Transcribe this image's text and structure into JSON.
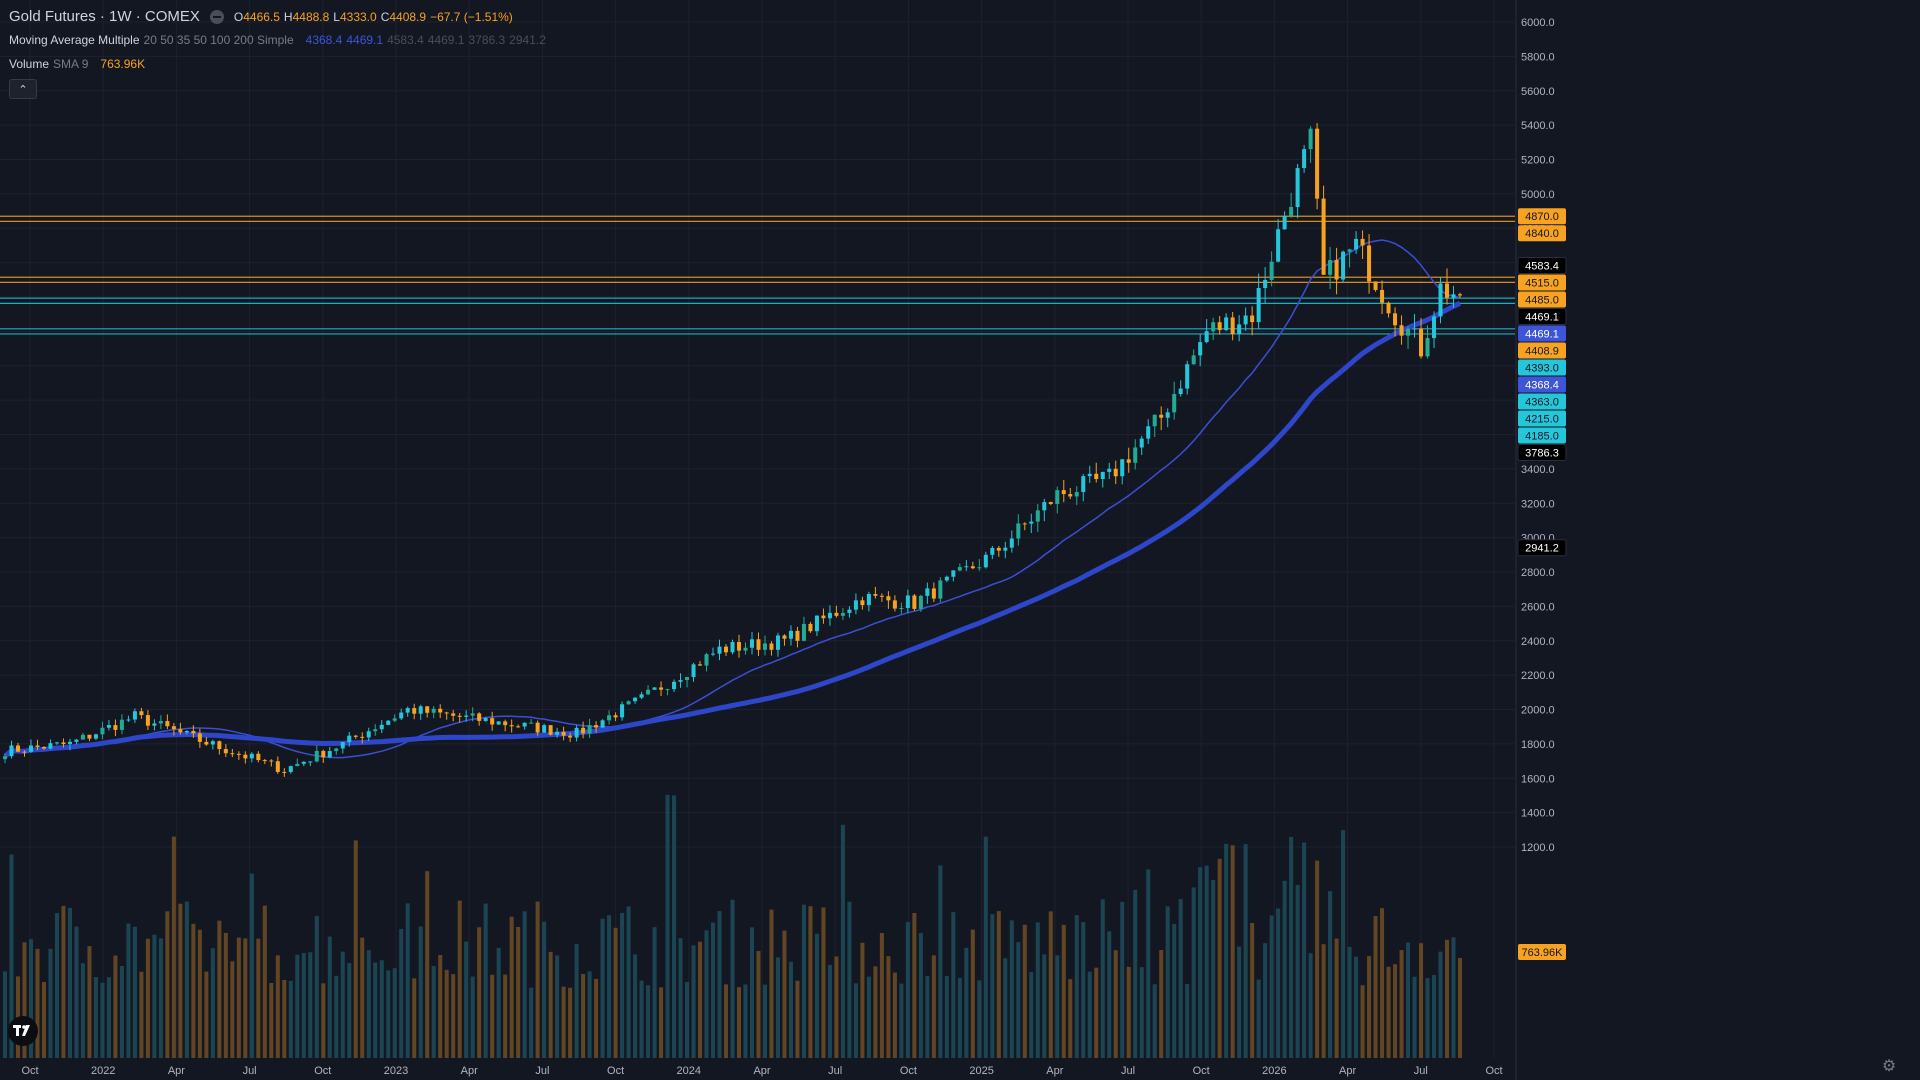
{
  "symbol": {
    "name": "Gold Futures · 1W · COMEX",
    "ohlc": {
      "open_label": "O",
      "open": "4466.5",
      "high_label": "H",
      "high": "4488.8",
      "low_label": "L",
      "low": "4333.0",
      "close_label": "C",
      "close": "4408.9",
      "change": "−67.7 (−1.51%)"
    }
  },
  "indicators": {
    "ma": {
      "name": "Moving Average Multiple",
      "params": "20 50 35 50 100 200 Simple",
      "values": [
        "4368.4",
        "4469.1",
        "4583.4",
        "4469.1",
        "3786.3",
        "2941.2"
      ]
    },
    "volume": {
      "name": "Volume",
      "params": "SMA 9",
      "value": "763.96K"
    }
  },
  "icons": {
    "collapse": "chevron-up-icon",
    "logo": "tradingview-logo-icon",
    "settings": "gear-icon",
    "indicator_toggle": "minus-circle-icon"
  },
  "colors": {
    "background": "#131722",
    "up": "#22ab94",
    "up_alt": "#26c6da",
    "down": "#f7a221",
    "ma_thin": "#3b4fd6",
    "ma_thick": "#2e46c9",
    "grid": "#1e2230"
  },
  "chart_data": {
    "type": "candlestick",
    "timeframe": "1W",
    "y_axis": {
      "range": [
        1100,
        6100
      ],
      "ticks": [
        "6000.0",
        "5800.0",
        "5600.0",
        "5400.0",
        "5200.0",
        "5000.0",
        "4800.0",
        "4600.0",
        "4400.0",
        "4200.0",
        "4000.0",
        "3800.0",
        "3600.0",
        "3400.0",
        "3200.0",
        "3000.0",
        "2800.0",
        "2600.0",
        "2400.0",
        "2200.0",
        "2000.0",
        "1800.0",
        "1600.0",
        "1400.0",
        "1200.0"
      ]
    },
    "x_axis": {
      "labels": [
        "Oct",
        "2022",
        "Apr",
        "Jul",
        "Oct",
        "2023",
        "Apr",
        "Jul",
        "Oct",
        "2024",
        "Apr",
        "Jul",
        "Oct",
        "2025",
        "Apr",
        "Jul",
        "Oct",
        "2026",
        "Apr",
        "Jul",
        "Oct"
      ]
    },
    "price_lines": [
      {
        "label": "4870.0",
        "value": 4870,
        "color": "#f7a221"
      },
      {
        "label": "4840.0",
        "value": 4840,
        "color": "#f7a221"
      },
      {
        "label": "4583.4",
        "value": 4583.4,
        "color": "#000000"
      },
      {
        "label": "4515.0",
        "value": 4515,
        "color": "#f7a221"
      },
      {
        "label": "4485.0",
        "value": 4485,
        "color": "#f7a221"
      },
      {
        "label": "4469.1",
        "value": 4469.1,
        "color": "#000000"
      },
      {
        "label": "4469.1",
        "value": 4469.1,
        "color": "#3d55d6"
      },
      {
        "label": "4408.9",
        "value": 4408.9,
        "color": "#f7a221"
      },
      {
        "label": "4393.0",
        "value": 4393,
        "color": "#26c6da"
      },
      {
        "label": "4368.4",
        "value": 4368.4,
        "color": "#3d55d6"
      },
      {
        "label": "4363.0",
        "value": 4363,
        "color": "#26c6da"
      },
      {
        "label": "4215.0",
        "value": 4215,
        "color": "#26c6da"
      },
      {
        "label": "4185.0",
        "value": 4185,
        "color": "#26c6da"
      },
      {
        "label": "3786.3",
        "value": 3786.3,
        "color": "#000000"
      },
      {
        "label": "2941.2",
        "value": 2941.2,
        "color": "#000000"
      },
      {
        "label": "763.96K",
        "value": 763.96,
        "color": "#f7a221"
      }
    ],
    "horizontal_levels": [
      {
        "value": 4870,
        "color": "#f7a221"
      },
      {
        "value": 4840,
        "color": "#f7a221"
      },
      {
        "value": 4515,
        "color": "#f7a221"
      },
      {
        "value": 4485,
        "color": "#f7a221"
      },
      {
        "value": 4393,
        "color": "#26c6da"
      },
      {
        "value": 4363,
        "color": "#26c6da"
      },
      {
        "value": 4215,
        "color": "#26c6da"
      },
      {
        "value": 4185,
        "color": "#26c6da"
      }
    ],
    "price_anchors": [
      {
        "week": 0,
        "value": 1760
      },
      {
        "week": 10,
        "value": 1800
      },
      {
        "week": 20,
        "value": 1960
      },
      {
        "week": 30,
        "value": 1820
      },
      {
        "week": 43,
        "value": 1650
      },
      {
        "week": 52,
        "value": 1800
      },
      {
        "week": 62,
        "value": 2000
      },
      {
        "week": 75,
        "value": 1930
      },
      {
        "week": 88,
        "value": 1860
      },
      {
        "week": 98,
        "value": 2060
      },
      {
        "week": 110,
        "value": 2350
      },
      {
        "week": 120,
        "value": 2400
      },
      {
        "week": 132,
        "value": 2650
      },
      {
        "week": 140,
        "value": 2620
      },
      {
        "week": 152,
        "value": 2900
      },
      {
        "week": 162,
        "value": 3250
      },
      {
        "week": 170,
        "value": 3350
      },
      {
        "week": 178,
        "value": 3700
      },
      {
        "week": 185,
        "value": 4200
      },
      {
        "week": 192,
        "value": 4300
      },
      {
        "week": 198,
        "value": 5000
      },
      {
        "week": 201,
        "value": 5300
      },
      {
        "week": 203,
        "value": 4500
      },
      {
        "week": 208,
        "value": 4700
      },
      {
        "week": 214,
        "value": 4300
      },
      {
        "week": 218,
        "value": 4100
      },
      {
        "week": 221,
        "value": 4450
      },
      {
        "week": 224,
        "value": 4409
      }
    ],
    "total_weeks": 225,
    "volume": {
      "unit": "K",
      "sma_period": 9,
      "last": 763.96
    },
    "moving_averages": [
      {
        "name": "MA 20",
        "value": 4368.4
      },
      {
        "name": "MA 50",
        "value": 4469.1
      },
      {
        "name": "MA 35",
        "value": 4583.4
      },
      {
        "name": "MA 50",
        "value": 4469.1
      },
      {
        "name": "MA 100",
        "value": 3786.3
      },
      {
        "name": "MA 200",
        "value": 2941.2
      }
    ]
  }
}
